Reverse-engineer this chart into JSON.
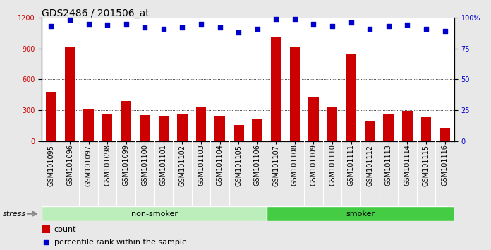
{
  "title": "GDS2486 / 201506_at",
  "categories": [
    "GSM101095",
    "GSM101096",
    "GSM101097",
    "GSM101098",
    "GSM101099",
    "GSM101100",
    "GSM101101",
    "GSM101102",
    "GSM101103",
    "GSM101104",
    "GSM101105",
    "GSM101106",
    "GSM101107",
    "GSM101108",
    "GSM101109",
    "GSM101110",
    "GSM101111",
    "GSM101112",
    "GSM101113",
    "GSM101114",
    "GSM101115",
    "GSM101116"
  ],
  "counts": [
    480,
    920,
    310,
    270,
    390,
    255,
    250,
    270,
    330,
    250,
    155,
    220,
    1010,
    920,
    430,
    330,
    840,
    200,
    265,
    295,
    230,
    130
  ],
  "percentile_ranks": [
    93,
    98,
    95,
    94,
    95,
    92,
    91,
    92,
    95,
    92,
    88,
    91,
    99,
    99,
    95,
    93,
    96,
    91,
    93,
    94,
    91,
    89
  ],
  "bar_color": "#cc0000",
  "scatter_color": "#0000cc",
  "left_ylim": [
    0,
    1200
  ],
  "right_ylim": [
    0,
    100
  ],
  "left_yticks": [
    0,
    300,
    600,
    900,
    1200
  ],
  "right_yticks": [
    0,
    25,
    50,
    75,
    100
  ],
  "grid_values": [
    300,
    600,
    900
  ],
  "nonsmoker_color": "#bbeebb",
  "smoker_color": "#44cc44",
  "nonsmoker_indices": [
    0,
    11
  ],
  "smoker_indices": [
    12,
    21
  ],
  "stress_label": "stress",
  "legend_count_label": "count",
  "legend_pct_label": "percentile rank within the sample",
  "fig_bg_color": "#e8e8e8",
  "plot_bg_color": "#ffffff",
  "xticklabel_bg": "#d0d0d0",
  "title_fontsize": 10,
  "tick_fontsize": 7,
  "legend_fontsize": 8
}
